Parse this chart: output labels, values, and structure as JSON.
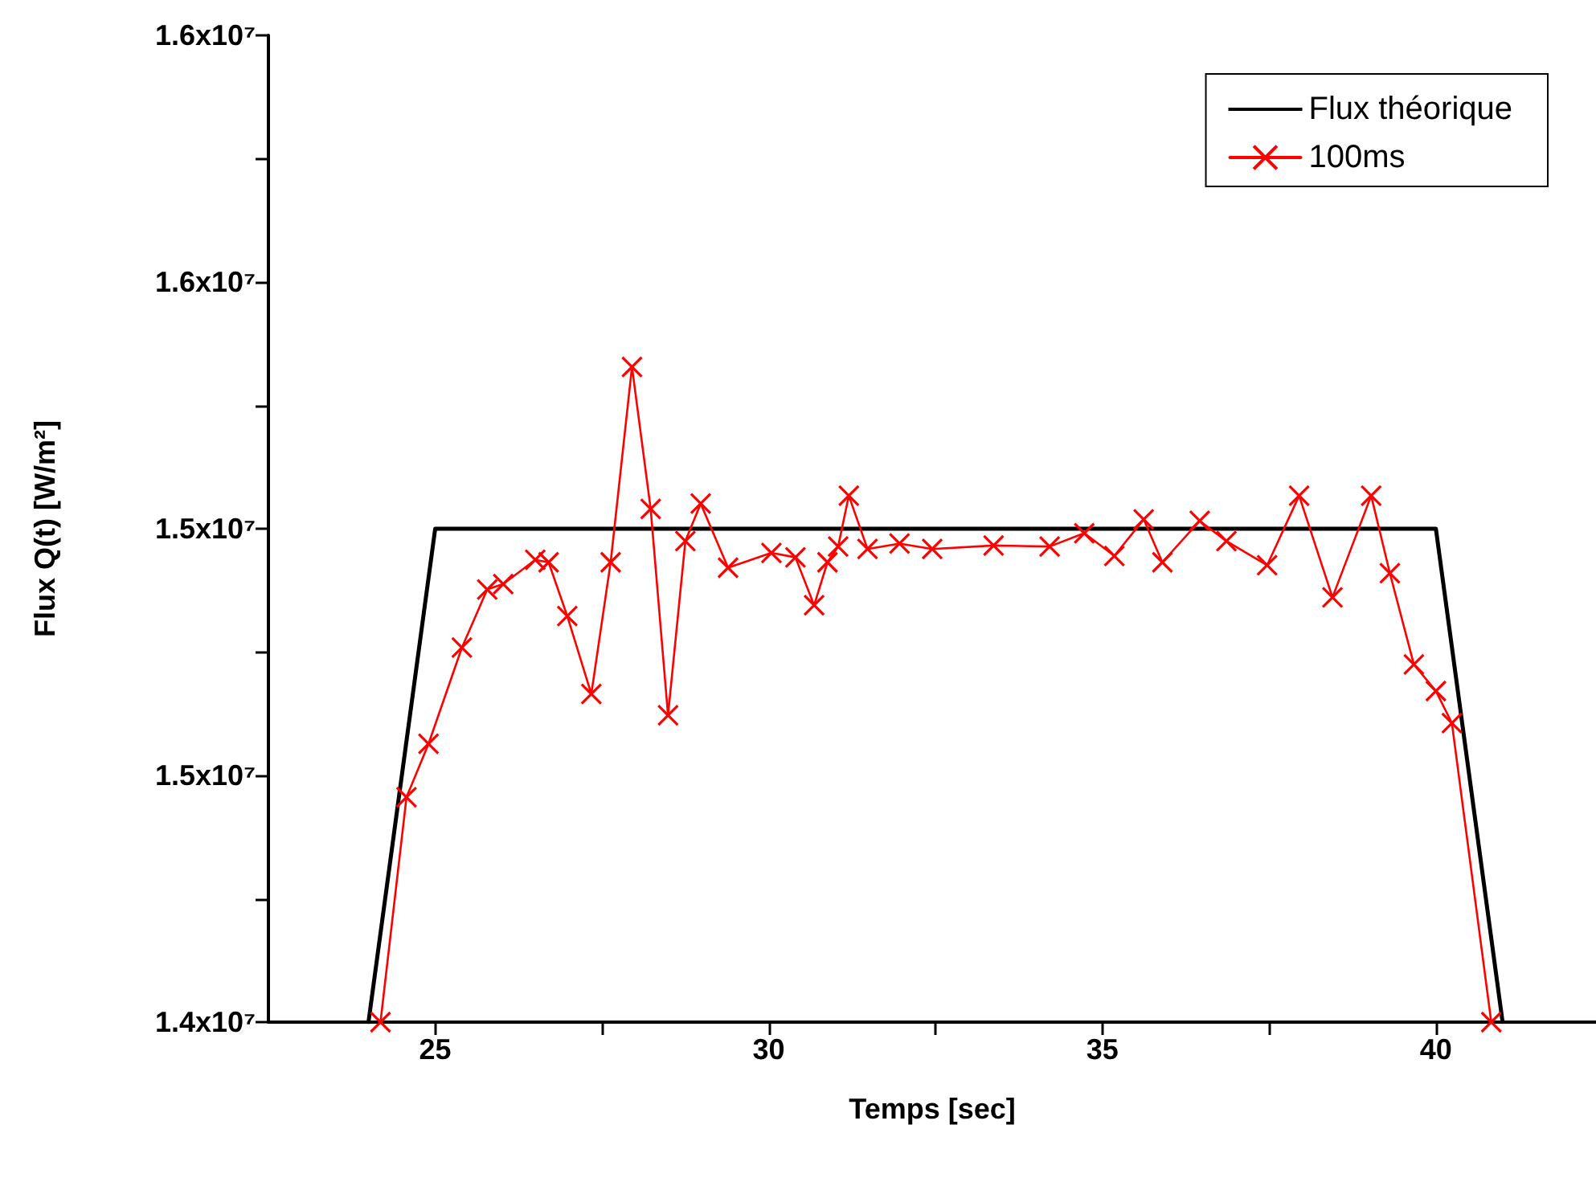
{
  "chart_data": {
    "type": "line",
    "xlabel": "Temps [sec]",
    "ylabel": "Flux Q(t) [W/m²]",
    "xlim": [
      22.5,
      42.4
    ],
    "xticks": [
      25,
      {
        "value": 27.5,
        "label": null
      },
      30,
      {
        "value": 32.5,
        "label": null
      },
      35,
      {
        "value": 37.5,
        "label": null
      },
      40
    ],
    "ylim": [
      14000000,
      16000000
    ],
    "yticks": [
      {
        "value": 14000000,
        "label": "1.4x10⁷"
      },
      {
        "value": 14250000,
        "label": null
      },
      {
        "value": 14500000,
        "label": "1.5x10⁷"
      },
      {
        "value": 14750000,
        "label": null
      },
      {
        "value": 15000000,
        "label": "1.5x10⁷"
      },
      {
        "value": 15250000,
        "label": null
      },
      {
        "value": 15500000,
        "label": "1.6x10⁷"
      },
      {
        "value": 15750000,
        "label": null
      },
      {
        "value": 16000000,
        "label": "1.6x10⁷"
      }
    ],
    "grid": false,
    "legend": "top right",
    "series": [
      {
        "name": "Flux théorique",
        "color": "#000000",
        "marker": "none",
        "x": [
          24,
          25,
          40,
          41
        ],
        "values": [
          14000000,
          15000000,
          15000000,
          14000000
        ]
      },
      {
        "name": "100ms",
        "color": "#ff0000",
        "marker": "cross",
        "x": [
          24.18,
          24.57,
          24.9,
          25.4,
          25.78,
          26.02,
          26.5,
          26.7,
          26.98,
          27.34,
          27.63,
          27.95,
          28.23,
          28.49,
          28.75,
          28.98,
          29.39,
          30.04,
          30.4,
          30.68,
          30.88,
          31.04,
          31.2,
          31.48,
          31.96,
          32.45,
          33.37,
          34.21,
          34.73,
          35.18,
          35.62,
          35.9,
          36.46,
          36.86,
          37.47,
          37.95,
          38.45,
          39.03,
          39.31,
          39.67,
          40.0,
          40.24,
          40.83
        ],
        "values": [
          14000000,
          14456000,
          14564000,
          14759000,
          14877000,
          14888000,
          14937000,
          14932000,
          14823000,
          14665000,
          14932000,
          15328000,
          15040000,
          14622000,
          14975000,
          15051000,
          14921000,
          14951000,
          14942000,
          14845000,
          14932000,
          14964000,
          15067000,
          14959000,
          14970000,
          14959000,
          14966000,
          14964000,
          14991000,
          14945000,
          15019000,
          14932000,
          15016000,
          14975000,
          14926000,
          15067000,
          14861000,
          15067000,
          14910000,
          14725000,
          14671000,
          14606000,
          14000000
        ]
      }
    ]
  }
}
